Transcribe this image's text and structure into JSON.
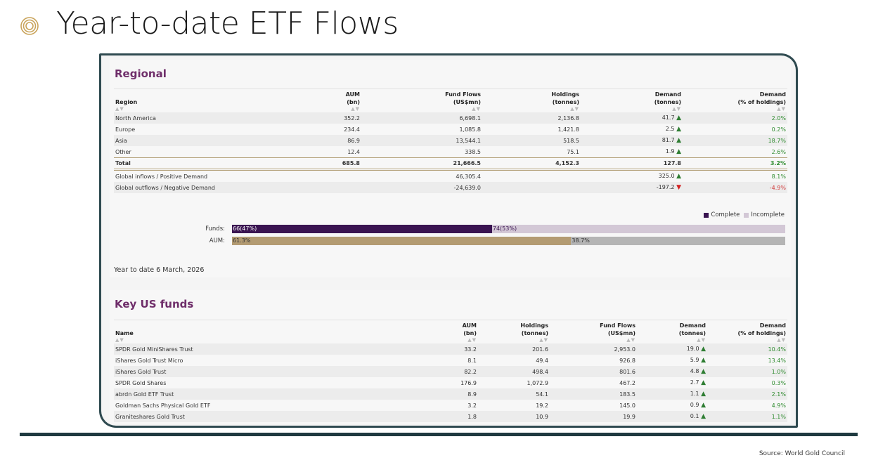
{
  "slide": {
    "title": "Year-to-date ETF Flows",
    "source": "Source: World Gold Council"
  },
  "colors": {
    "accent_title": "#6f2e6a",
    "complete": "#3a1451",
    "incomplete": "#d3c8d6",
    "aum_complete": "#b39b72",
    "aum_incomplete": "#b5b5b5",
    "positive": "#2e8b2e",
    "negative": "#d23b3b",
    "frame": "#2f4a50"
  },
  "regional": {
    "title": "Regional",
    "sort_glyph": "▲▼",
    "headers": [
      {
        "l1": "",
        "l2": "Region"
      },
      {
        "l1": "AUM",
        "l2": "(bn)"
      },
      {
        "l1": "Fund Flows",
        "l2": "(US$mn)"
      },
      {
        "l1": "Holdings",
        "l2": "(tonnes)"
      },
      {
        "l1": "Demand",
        "l2": "(tonnes)"
      },
      {
        "l1": "Demand",
        "l2": "(% of holdings)"
      }
    ],
    "rows": [
      {
        "region": "North America",
        "aum": "352.2",
        "flows": "6,698.1",
        "holdings": "2,136.8",
        "demand": "41.7",
        "dir": "▲",
        "pct": "2.0%"
      },
      {
        "region": "Europe",
        "aum": "234.4",
        "flows": "1,085.8",
        "holdings": "1,421.8",
        "demand": "2.5",
        "dir": "▲",
        "pct": "0.2%"
      },
      {
        "region": "Asia",
        "aum": "86.9",
        "flows": "13,544.1",
        "holdings": "518.5",
        "demand": "81.7",
        "dir": "▲",
        "pct": "18.7%"
      },
      {
        "region": "Other",
        "aum": "12.4",
        "flows": "338.5",
        "holdings": "75.1",
        "demand": "1.9",
        "dir": "▲",
        "pct": "2.6%"
      }
    ],
    "total": {
      "region": "Total",
      "aum": "685.8",
      "flows": "21,666.5",
      "holdings": "4,152.3",
      "demand": "127.8",
      "pct": "3.2%"
    },
    "inflows": {
      "label": "Global inflows / Positive Demand",
      "flows": "46,305.4",
      "demand": "325.0",
      "dir": "▲",
      "pct": "8.1%"
    },
    "outflows": {
      "label": "Global outflows / Negative Demand",
      "flows": "-24,639.0",
      "demand": "-197.2",
      "dir": "▼",
      "pct": "-4.9%"
    },
    "legend": {
      "complete": "Complete",
      "incomplete": "Incomplete"
    },
    "bars": {
      "funds": {
        "label": "Funds:",
        "complete_text": "66(47%)",
        "incomplete_text": "74(53%)",
        "complete_pct": 47
      },
      "aum": {
        "label": "AUM:",
        "complete_text": "61.3%",
        "incomplete_text": "38.7%",
        "complete_pct": 61.3
      }
    },
    "ytd": "Year to date 6 March, 2026"
  },
  "keyus": {
    "title": "Key US funds",
    "sort_glyph": "▲▼",
    "headers": [
      {
        "l1": "",
        "l2": "Name"
      },
      {
        "l1": "AUM",
        "l2": "(bn)"
      },
      {
        "l1": "Holdings",
        "l2": "(tonnes)"
      },
      {
        "l1": "Fund Flows",
        "l2": "(US$mn)"
      },
      {
        "l1": "Demand",
        "l2": "(tonnes)"
      },
      {
        "l1": "Demand",
        "l2": "(% of holdings)"
      }
    ],
    "rows": [
      {
        "name": "SPDR Gold MiniShares Trust",
        "aum": "33.2",
        "holdings": "201.6",
        "flows": "2,953.0",
        "demand": "19.0",
        "dir": "▲",
        "pct": "10.4%"
      },
      {
        "name": "iShares Gold Trust Micro",
        "aum": "8.1",
        "holdings": "49.4",
        "flows": "926.8",
        "demand": "5.9",
        "dir": "▲",
        "pct": "13.4%"
      },
      {
        "name": "iShares Gold Trust",
        "aum": "82.2",
        "holdings": "498.4",
        "flows": "801.6",
        "demand": "4.8",
        "dir": "▲",
        "pct": "1.0%"
      },
      {
        "name": "SPDR Gold Shares",
        "aum": "176.9",
        "holdings": "1,072.9",
        "flows": "467.2",
        "demand": "2.7",
        "dir": "▲",
        "pct": "0.3%"
      },
      {
        "name": "abrdn Gold ETF Trust",
        "aum": "8.9",
        "holdings": "54.1",
        "flows": "183.5",
        "demand": "1.1",
        "dir": "▲",
        "pct": "2.1%"
      },
      {
        "name": "Goldman Sachs Physical Gold ETF",
        "aum": "3.2",
        "holdings": "19.2",
        "flows": "145.0",
        "demand": "0.9",
        "dir": "▲",
        "pct": "4.9%"
      },
      {
        "name": "Graniteshares Gold Trust",
        "aum": "1.8",
        "holdings": "10.9",
        "flows": "19.9",
        "demand": "0.1",
        "dir": "▲",
        "pct": "1.1%"
      }
    ]
  }
}
